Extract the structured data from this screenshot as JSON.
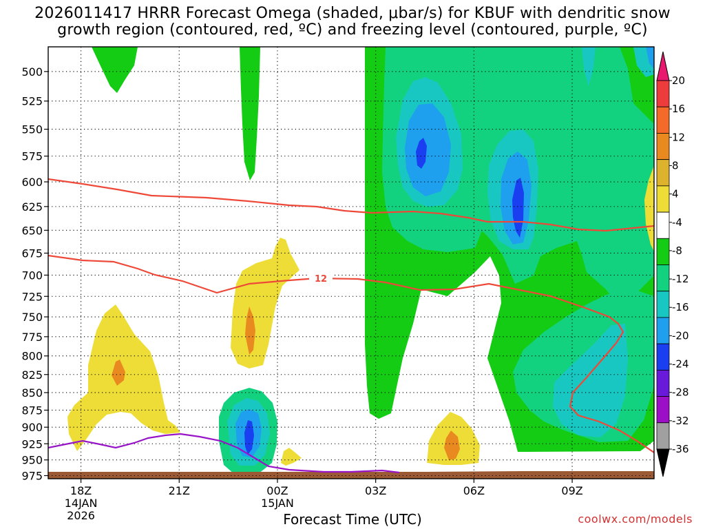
{
  "chart_data": {
    "type": "contour",
    "title_line_1": "2026011417 HRRR Forecast Omega (shaded, μbar/s) for KBUF with dendritic snow",
    "title_line_2": "growth region (contoured, red, ºC) and freezing level (contoured, purple, ºC)",
    "xlabel": "Forecast Time (UTC)",
    "x_range_hours": [
      17.0,
      11.5
    ],
    "x_ticks": [
      {
        "label": "18Z",
        "sub": [
          "14JAN",
          "2026"
        ],
        "hour": 18
      },
      {
        "label": "21Z",
        "sub": [],
        "hour": 21
      },
      {
        "label": "00Z",
        "sub": [
          "15JAN"
        ],
        "hour": 24
      },
      {
        "label": "03Z",
        "sub": [],
        "hour": 27
      },
      {
        "label": "06Z",
        "sub": [],
        "hour": 30
      },
      {
        "label": "09Z",
        "sub": [],
        "hour": 33
      }
    ],
    "y_ticks_hpa": [
      500,
      525,
      550,
      575,
      600,
      625,
      650,
      675,
      700,
      725,
      750,
      775,
      800,
      825,
      850,
      875,
      900,
      925,
      950,
      975
    ],
    "colorbar": {
      "units": "μbar/s",
      "labels": [
        "20",
        "16",
        "12",
        "8",
        "4",
        "-4",
        "-8",
        "-12",
        "-16",
        "-20",
        "-24",
        "-28",
        "-32",
        "-36"
      ],
      "colors": [
        "#e8186e",
        "#ee3c3c",
        "#f46a28",
        "#e98a21",
        "#ddb22c",
        "#eedd37",
        "#ffffff",
        "#14cc14",
        "#13d27f",
        "#19c7c2",
        "#1ea0ee",
        "#193ff0",
        "#6919da",
        "#9c0fc6",
        "#a0a0a0",
        "#000000"
      ]
    },
    "dgz_contour_label": "12",
    "series": [
      {
        "name": "dendritic growth zone (red, ºC)",
        "color": "#ee4838"
      },
      {
        "name": "freezing level (purple, ºC)",
        "color": "#9814c8"
      }
    ]
  },
  "credit": "coolwx.com/models"
}
